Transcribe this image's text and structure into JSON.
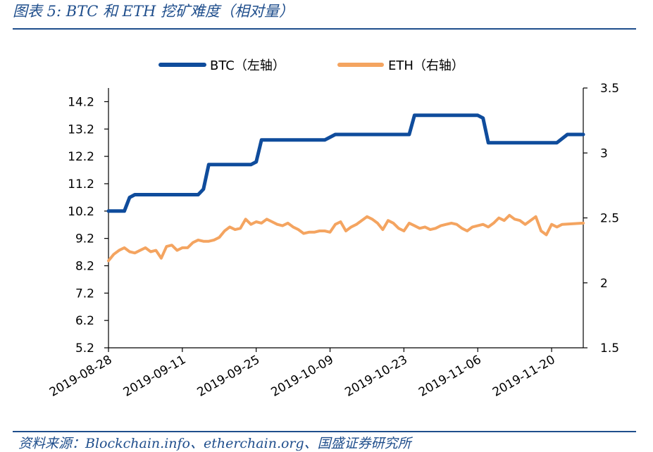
{
  "figure": {
    "title": "图表 5:  BTC 和 ETH 挖矿难度（相对量）",
    "source": "资料来源：Blockchain.info、etherchain.org、国盛证券研究所"
  },
  "chart_data": {
    "type": "line",
    "title": "",
    "x_ticks": [
      "2019-08-28",
      "2019-09-11",
      "2019-09-25",
      "2019-10-09",
      "2019-10-23",
      "2019-11-06",
      "2019-11-20"
    ],
    "x_range": [
      "2019-08-28",
      "2019-11-26"
    ],
    "y_left": {
      "ylim": [
        5.2,
        14.7
      ],
      "ticks": [
        "14.2",
        "13.2",
        "12.2",
        "11.2",
        "10.2",
        "9.2",
        "8.2",
        "7.2",
        "6.2",
        "5.2"
      ]
    },
    "y_right": {
      "ylim": [
        1.5,
        3.5
      ],
      "ticks": [
        "3.5",
        "3",
        "2.5",
        "2",
        "1.5"
      ]
    },
    "legend": "top",
    "grid": false,
    "series": [
      {
        "name": "BTC（左轴）",
        "axis": "left",
        "color": "#0f4c9c",
        "points": [
          [
            "2019-08-28",
            10.2
          ],
          [
            "2019-08-31",
            10.2
          ],
          [
            "2019-09-01",
            10.7
          ],
          [
            "2019-09-02",
            10.8
          ],
          [
            "2019-09-14",
            10.8
          ],
          [
            "2019-09-15",
            11.0
          ],
          [
            "2019-09-16",
            11.9
          ],
          [
            "2019-09-24",
            11.9
          ],
          [
            "2019-09-25",
            12.0
          ],
          [
            "2019-09-26",
            12.8
          ],
          [
            "2019-10-08",
            12.8
          ],
          [
            "2019-10-10",
            13.0
          ],
          [
            "2019-10-24",
            13.0
          ],
          [
            "2019-10-25",
            13.7
          ],
          [
            "2019-11-06",
            13.7
          ],
          [
            "2019-11-07",
            13.6
          ],
          [
            "2019-11-08",
            12.7
          ],
          [
            "2019-11-21",
            12.7
          ],
          [
            "2019-11-23",
            13.0
          ],
          [
            "2019-11-26",
            13.0
          ]
        ]
      },
      {
        "name": "ETH（右轴）",
        "axis": "right",
        "color": "#f4a460",
        "points": [
          [
            "2019-08-28",
            2.17
          ],
          [
            "2019-08-29",
            2.22
          ],
          [
            "2019-08-30",
            2.25
          ],
          [
            "2019-08-31",
            2.27
          ],
          [
            "2019-09-01",
            2.24
          ],
          [
            "2019-09-02",
            2.23
          ],
          [
            "2019-09-03",
            2.25
          ],
          [
            "2019-09-04",
            2.27
          ],
          [
            "2019-09-05",
            2.24
          ],
          [
            "2019-09-06",
            2.25
          ],
          [
            "2019-09-07",
            2.19
          ],
          [
            "2019-09-08",
            2.28
          ],
          [
            "2019-09-09",
            2.29
          ],
          [
            "2019-09-10",
            2.25
          ],
          [
            "2019-09-11",
            2.27
          ],
          [
            "2019-09-12",
            2.27
          ],
          [
            "2019-09-13",
            2.31
          ],
          [
            "2019-09-14",
            2.33
          ],
          [
            "2019-09-15",
            2.32
          ],
          [
            "2019-09-16",
            2.32
          ],
          [
            "2019-09-17",
            2.33
          ],
          [
            "2019-09-18",
            2.35
          ],
          [
            "2019-09-19",
            2.4
          ],
          [
            "2019-09-20",
            2.43
          ],
          [
            "2019-09-21",
            2.41
          ],
          [
            "2019-09-22",
            2.42
          ],
          [
            "2019-09-23",
            2.49
          ],
          [
            "2019-09-24",
            2.45
          ],
          [
            "2019-09-25",
            2.47
          ],
          [
            "2019-09-26",
            2.46
          ],
          [
            "2019-09-27",
            2.49
          ],
          [
            "2019-09-28",
            2.47
          ],
          [
            "2019-09-29",
            2.45
          ],
          [
            "2019-09-30",
            2.44
          ],
          [
            "2019-10-01",
            2.46
          ],
          [
            "2019-10-02",
            2.43
          ],
          [
            "2019-10-03",
            2.41
          ],
          [
            "2019-10-04",
            2.38
          ],
          [
            "2019-10-05",
            2.39
          ],
          [
            "2019-10-06",
            2.39
          ],
          [
            "2019-10-07",
            2.4
          ],
          [
            "2019-10-08",
            2.4
          ],
          [
            "2019-10-09",
            2.39
          ],
          [
            "2019-10-10",
            2.45
          ],
          [
            "2019-10-11",
            2.47
          ],
          [
            "2019-10-12",
            2.4
          ],
          [
            "2019-10-13",
            2.43
          ],
          [
            "2019-10-14",
            2.45
          ],
          [
            "2019-10-15",
            2.48
          ],
          [
            "2019-10-16",
            2.51
          ],
          [
            "2019-10-17",
            2.49
          ],
          [
            "2019-10-18",
            2.46
          ],
          [
            "2019-10-19",
            2.41
          ],
          [
            "2019-10-20",
            2.48
          ],
          [
            "2019-10-21",
            2.46
          ],
          [
            "2019-10-22",
            2.42
          ],
          [
            "2019-10-23",
            2.4
          ],
          [
            "2019-10-24",
            2.46
          ],
          [
            "2019-10-25",
            2.44
          ],
          [
            "2019-10-26",
            2.42
          ],
          [
            "2019-10-27",
            2.43
          ],
          [
            "2019-10-28",
            2.41
          ],
          [
            "2019-10-29",
            2.42
          ],
          [
            "2019-10-30",
            2.44
          ],
          [
            "2019-10-31",
            2.45
          ],
          [
            "2019-11-01",
            2.46
          ],
          [
            "2019-11-02",
            2.45
          ],
          [
            "2019-11-03",
            2.42
          ],
          [
            "2019-11-04",
            2.4
          ],
          [
            "2019-11-05",
            2.43
          ],
          [
            "2019-11-06",
            2.44
          ],
          [
            "2019-11-07",
            2.45
          ],
          [
            "2019-11-08",
            2.43
          ],
          [
            "2019-11-09",
            2.46
          ],
          [
            "2019-11-10",
            2.5
          ],
          [
            "2019-11-11",
            2.48
          ],
          [
            "2019-11-12",
            2.52
          ],
          [
            "2019-11-13",
            2.49
          ],
          [
            "2019-11-14",
            2.48
          ],
          [
            "2019-11-15",
            2.45
          ],
          [
            "2019-11-16",
            2.48
          ],
          [
            "2019-11-17",
            2.51
          ],
          [
            "2019-11-18",
            2.4
          ],
          [
            "2019-11-19",
            2.37
          ],
          [
            "2019-11-20",
            2.45
          ],
          [
            "2019-11-21",
            2.43
          ],
          [
            "2019-11-22",
            2.45
          ],
          [
            "2019-11-26",
            2.46
          ]
        ]
      }
    ]
  }
}
